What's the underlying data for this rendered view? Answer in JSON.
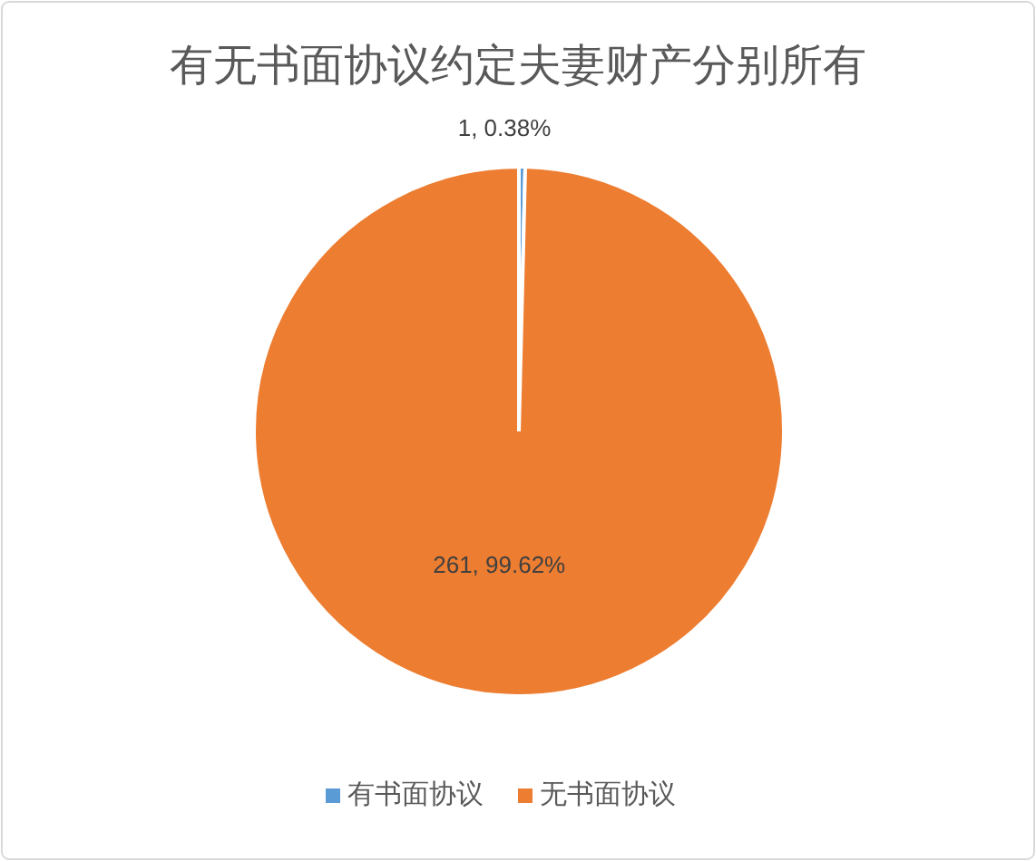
{
  "chart_data": {
    "type": "pie",
    "title": "有无书面协议约定夫妻财产分别所有",
    "categories": [
      "有书面协议",
      "无书面协议"
    ],
    "values": [
      1,
      261
    ],
    "colors": [
      "#5b9bd5",
      "#ed7d31"
    ],
    "value_labels": [
      "1, 0.38%",
      "261, 99.62%"
    ],
    "legend": "bottom"
  }
}
